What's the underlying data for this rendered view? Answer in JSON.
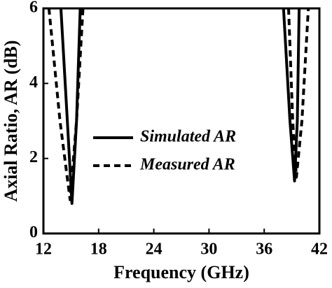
{
  "chart_data": {
    "type": "line",
    "xlabel": "Frequency (GHz)",
    "ylabel": "Axial Ratio, AR (dB)",
    "series": [
      {
        "name": "Simulated AR",
        "color": "#000000",
        "dash": "solid",
        "x": [
          13.9,
          14.6,
          15.1,
          15.6,
          16.0,
          27,
          38.1,
          38.8,
          39.3,
          39.6,
          39.8
        ],
        "values": [
          6,
          3,
          0.8,
          3,
          6,
          null,
          6,
          3,
          1.4,
          3,
          6
        ]
      },
      {
        "name": "Measured AR",
        "color": "#000000",
        "dash": "dashed",
        "x": [
          12.6,
          13.8,
          14.9,
          15.6,
          16.3,
          27,
          38.65,
          39.1,
          39.5,
          40.1,
          40.8
        ],
        "values": [
          6,
          3,
          0.9,
          3,
          6,
          null,
          6,
          3,
          1.5,
          3,
          6
        ]
      }
    ],
    "xlim": [
      12,
      42
    ],
    "xticks": [
      12,
      18,
      24,
      30,
      36,
      42
    ],
    "ylim": [
      0,
      6
    ],
    "yticks": [
      0,
      2,
      4,
      6
    ]
  }
}
